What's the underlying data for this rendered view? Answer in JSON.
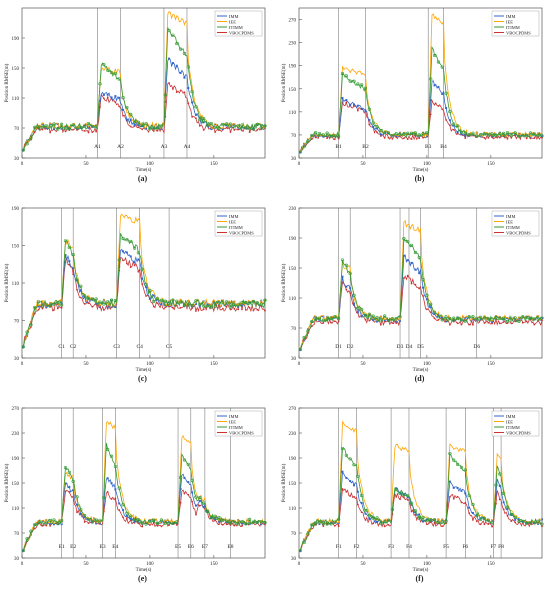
{
  "chart_data": [
    {
      "panel": "(a)",
      "type": "line",
      "xlabel": "Time(s)",
      "ylabel": "Position RMSE(m)",
      "xlim": [
        0,
        190
      ],
      "ylim": [
        30,
        230
      ],
      "xticks": [
        0,
        50,
        100,
        150
      ],
      "yticks": [
        30,
        70,
        110,
        150,
        190
      ],
      "legend": [
        "IMM",
        "IEE",
        "ITIMM",
        "VBOCPDMS"
      ],
      "legend_position": "top-right",
      "markers": [
        {
          "label": "A1",
          "x": 59
        },
        {
          "label": "A2",
          "x": 77
        },
        {
          "label": "A3",
          "x": 111
        },
        {
          "label": "A4",
          "x": 129
        }
      ],
      "baseline": 72,
      "bursts": [
        {
          "start": 59,
          "end": 77,
          "peaks": {
            "IMM": 118,
            "IEE": 150,
            "ITIMM": 156,
            "VBOCPDMS": 112
          }
        },
        {
          "start": 111,
          "end": 129,
          "peaks": {
            "IMM": 160,
            "IEE": 222,
            "ITIMM": 200,
            "VBOCPDMS": 128
          }
        }
      ]
    },
    {
      "panel": "(b)",
      "type": "line",
      "xlabel": "Time(s)",
      "ylabel": "Position RMSE(m)",
      "xlim": [
        0,
        190
      ],
      "ylim": [
        30,
        290
      ],
      "xticks": [
        0,
        50,
        100,
        150
      ],
      "yticks": [
        30,
        70,
        110,
        150,
        190,
        230,
        270
      ],
      "legend": [
        "IMM",
        "IEE",
        "ITIMM",
        "VBOCPDMS"
      ],
      "legend_position": "top-right",
      "markers": [
        {
          "label": "B1",
          "x": 31
        },
        {
          "label": "B2",
          "x": 52
        },
        {
          "label": "B3",
          "x": 101
        },
        {
          "label": "B4",
          "x": 113
        }
      ],
      "baseline": 70,
      "bursts": [
        {
          "start": 31,
          "end": 52,
          "peaks": {
            "IMM": 130,
            "IEE": 185,
            "ITIMM": 175,
            "VBOCPDMS": 125
          }
        },
        {
          "start": 101,
          "end": 113,
          "peaks": {
            "IMM": 165,
            "IEE": 280,
            "ITIMM": 220,
            "VBOCPDMS": 130
          }
        }
      ]
    },
    {
      "panel": "(c)",
      "type": "line",
      "xlabel": "Time(s)",
      "ylabel": "Position RMSE(m)",
      "xlim": [
        0,
        190
      ],
      "ylim": [
        30,
        190
      ],
      "xticks": [
        0,
        50,
        100,
        150
      ],
      "yticks": [
        30,
        70,
        110,
        150,
        190
      ],
      "legend": [
        "IMM",
        "IEE",
        "ITIMM",
        "VBOCPDMS"
      ],
      "legend_position": "top-right",
      "markers": [
        {
          "label": "C1",
          "x": 31
        },
        {
          "label": "C2",
          "x": 40
        },
        {
          "label": "C3",
          "x": 74
        },
        {
          "label": "C4",
          "x": 92
        },
        {
          "label": "C5",
          "x": 115
        }
      ],
      "baseline": 88,
      "bursts": [
        {
          "start": 31,
          "end": 40,
          "peaks": {
            "IMM": 140,
            "IEE": 155,
            "ITIMM": 158,
            "VBOCPDMS": 135
          }
        },
        {
          "start": 74,
          "end": 92,
          "peaks": {
            "IMM": 145,
            "IEE": 182,
            "ITIMM": 162,
            "VBOCPDMS": 138
          }
        }
      ]
    },
    {
      "panel": "(d)",
      "type": "line",
      "xlabel": "Time(s)",
      "ylabel": "Position RMSE(m)",
      "xlim": [
        0,
        190
      ],
      "ylim": [
        30,
        230
      ],
      "xticks": [
        0,
        50,
        100,
        150
      ],
      "yticks": [
        30,
        70,
        110,
        150,
        190,
        230
      ],
      "legend": [
        "IMM",
        "IEE",
        "ITIMM",
        "VBOCPDMS"
      ],
      "legend_position": "top-right",
      "markers": [
        {
          "label": "D1",
          "x": 31
        },
        {
          "label": "D2",
          "x": 40
        },
        {
          "label": "D3",
          "x": 79
        },
        {
          "label": "D4",
          "x": 86
        },
        {
          "label": "D5",
          "x": 95
        },
        {
          "label": "D6",
          "x": 139
        }
      ],
      "baseline": 82,
      "bursts": [
        {
          "start": 31,
          "end": 40,
          "peaks": {
            "IMM": 135,
            "IEE": 155,
            "ITIMM": 160,
            "VBOCPDMS": 130
          }
        },
        {
          "start": 79,
          "end": 95,
          "peaks": {
            "IMM": 165,
            "IEE": 210,
            "ITIMM": 190,
            "VBOCPDMS": 140
          }
        }
      ]
    },
    {
      "panel": "(e)",
      "type": "line",
      "xlabel": "Time(s)",
      "ylabel": "Position RMSE(m)",
      "xlim": [
        0,
        190
      ],
      "ylim": [
        30,
        270
      ],
      "xticks": [
        0,
        50,
        100,
        150
      ],
      "yticks": [
        30,
        70,
        110,
        150,
        190,
        230,
        270
      ],
      "legend": [
        "IMM",
        "IEE",
        "ITIMM",
        "VBOCPDMS"
      ],
      "legend_position": "top-right",
      "markers": [
        {
          "label": "E1",
          "x": 31
        },
        {
          "label": "E2",
          "x": 40
        },
        {
          "label": "E3",
          "x": 63
        },
        {
          "label": "E4",
          "x": 73
        },
        {
          "label": "E5",
          "x": 122
        },
        {
          "label": "E6",
          "x": 132
        },
        {
          "label": "E7",
          "x": 143
        },
        {
          "label": "E8",
          "x": 163
        }
      ],
      "baseline": 88,
      "bursts": [
        {
          "start": 31,
          "end": 40,
          "peaks": {
            "IMM": 150,
            "IEE": 165,
            "ITIMM": 178,
            "VBOCPDMS": 140
          }
        },
        {
          "start": 63,
          "end": 73,
          "peaks": {
            "IMM": 160,
            "IEE": 250,
            "ITIMM": 210,
            "VBOCPDMS": 135
          }
        },
        {
          "start": 122,
          "end": 132,
          "peaks": {
            "IMM": 165,
            "IEE": 225,
            "ITIMM": 195,
            "VBOCPDMS": 140
          }
        },
        {
          "start": 135,
          "end": 143,
          "peaks": {
            "IMM": 122,
            "IEE": 128,
            "ITIMM": 126,
            "VBOCPDMS": 118
          }
        }
      ]
    },
    {
      "panel": "(f)",
      "type": "line",
      "xlabel": "Time(s)",
      "ylabel": "Position RMSE(m)",
      "xlim": [
        0,
        190
      ],
      "ylim": [
        30,
        270
      ],
      "xticks": [
        0,
        50,
        100,
        150
      ],
      "yticks": [
        30,
        70,
        110,
        150,
        190,
        230,
        270
      ],
      "legend": [
        "IMM",
        "IEE",
        "ITIMM",
        "VBOCPDMS"
      ],
      "legend_position": "top-right",
      "markers": [
        {
          "label": "F1",
          "x": 31
        },
        {
          "label": "F2",
          "x": 45
        },
        {
          "label": "F3",
          "x": 72
        },
        {
          "label": "F4",
          "x": 86
        },
        {
          "label": "F5",
          "x": 115
        },
        {
          "label": "F6",
          "x": 130
        },
        {
          "label": "F7",
          "x": 152
        },
        {
          "label": "F8",
          "x": 158
        }
      ],
      "baseline": 88,
      "bursts": [
        {
          "start": 31,
          "end": 45,
          "peaks": {
            "IMM": 165,
            "IEE": 245,
            "ITIMM": 205,
            "VBOCPDMS": 140
          }
        },
        {
          "start": 72,
          "end": 86,
          "peaks": {
            "IMM": 140,
            "IEE": 210,
            "ITIMM": 142,
            "VBOCPDMS": 132
          }
        },
        {
          "start": 115,
          "end": 130,
          "peaks": {
            "IMM": 150,
            "IEE": 210,
            "ITIMM": 195,
            "VBOCPDMS": 130
          }
        },
        {
          "start": 152,
          "end": 158,
          "peaks": {
            "IMM": 155,
            "IEE": 195,
            "ITIMM": 180,
            "VBOCPDMS": 135
          }
        }
      ]
    }
  ],
  "series_colors": {
    "IMM": "#3366cc",
    "IEE": "#ffa500",
    "ITIMM": "#339933",
    "VBOCPDMS": "#cc3333"
  },
  "marker_line_color": "#666666"
}
